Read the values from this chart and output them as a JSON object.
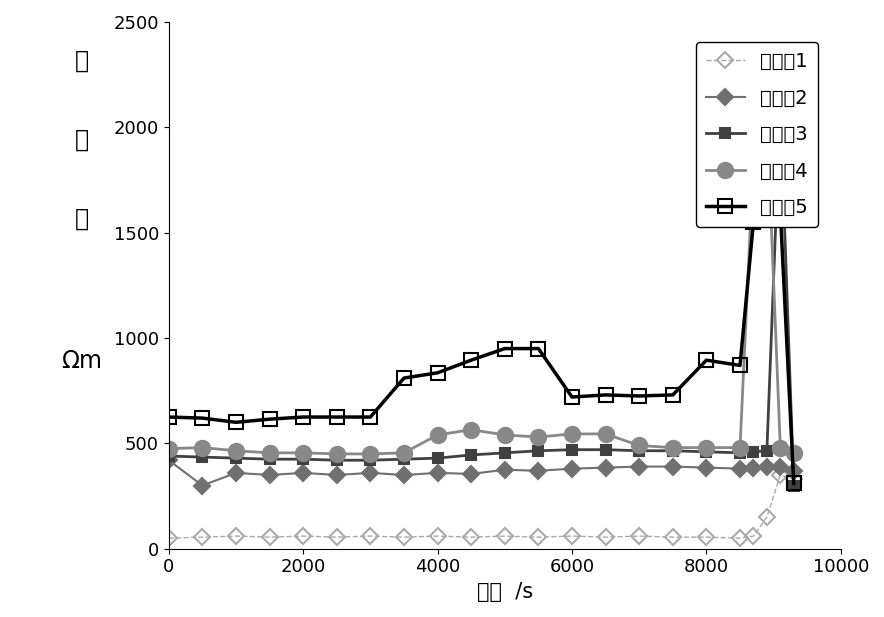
{
  "series": [
    {
      "name": "关键点1",
      "x": [
        0,
        500,
        1000,
        1500,
        2000,
        2500,
        3000,
        3500,
        4000,
        4500,
        5000,
        5500,
        6000,
        6500,
        7000,
        7500,
        8000,
        8500,
        8700,
        8900,
        9100,
        9300
      ],
      "y": [
        50,
        55,
        60,
        55,
        60,
        55,
        60,
        55,
        60,
        55,
        60,
        55,
        60,
        55,
        60,
        55,
        55,
        50,
        60,
        150,
        350,
        330
      ],
      "marker": "D",
      "markersize": 8,
      "color": "#aaaaaa",
      "linewidth": 1.0,
      "fillstyle": "none",
      "linestyle": "--"
    },
    {
      "name": "关键点2",
      "x": [
        0,
        500,
        1000,
        1500,
        2000,
        2500,
        3000,
        3500,
        4000,
        4500,
        5000,
        5500,
        6000,
        6500,
        7000,
        7500,
        8000,
        8500,
        8700,
        8900,
        9100,
        9300
      ],
      "y": [
        420,
        300,
        360,
        350,
        360,
        350,
        360,
        350,
        360,
        355,
        375,
        370,
        380,
        385,
        390,
        390,
        385,
        380,
        385,
        390,
        390,
        370
      ],
      "marker": "D",
      "markersize": 8,
      "color": "#707070",
      "linewidth": 1.5,
      "fillstyle": "full",
      "linestyle": "-"
    },
    {
      "name": "关键点3",
      "x": [
        0,
        500,
        1000,
        1500,
        2000,
        2500,
        3000,
        3500,
        4000,
        4500,
        5000,
        5500,
        6000,
        6500,
        7000,
        7500,
        8000,
        8500,
        8700,
        8900,
        9100,
        9300
      ],
      "y": [
        440,
        435,
        430,
        425,
        425,
        420,
        420,
        425,
        430,
        445,
        455,
        465,
        470,
        470,
        465,
        465,
        460,
        455,
        460,
        465,
        2100,
        300
      ],
      "marker": "s",
      "markersize": 7,
      "color": "#404040",
      "linewidth": 2.0,
      "fillstyle": "full",
      "linestyle": "-"
    },
    {
      "name": "关键点4",
      "x": [
        0,
        500,
        1000,
        1500,
        2000,
        2500,
        3000,
        3500,
        4000,
        4500,
        5000,
        5500,
        6000,
        6500,
        7000,
        7500,
        8000,
        8500,
        8700,
        8900,
        9100,
        9300
      ],
      "y": [
        475,
        480,
        465,
        455,
        455,
        450,
        450,
        455,
        540,
        565,
        540,
        530,
        545,
        545,
        490,
        480,
        480,
        480,
        1850,
        2050,
        480,
        455
      ],
      "marker": "o",
      "markersize": 11,
      "color": "#888888",
      "linewidth": 2.0,
      "fillstyle": "full",
      "linestyle": "-"
    },
    {
      "name": "关键点5",
      "x": [
        0,
        500,
        1000,
        1500,
        2000,
        2500,
        3000,
        3500,
        4000,
        4500,
        5000,
        5500,
        6000,
        6500,
        7000,
        7500,
        8000,
        8500,
        8700,
        8900,
        9100,
        9300
      ],
      "y": [
        625,
        620,
        600,
        615,
        625,
        625,
        625,
        810,
        835,
        895,
        950,
        950,
        720,
        730,
        725,
        730,
        895,
        870,
        1550,
        1620,
        1600,
        310
      ],
      "marker": "s",
      "markersize": 10,
      "color": "#000000",
      "linewidth": 2.5,
      "fillstyle": "none",
      "linestyle": "-"
    }
  ],
  "legend_names": [
    "关键点1",
    "关键点2",
    "关键点3",
    "关键点4",
    "关键点5"
  ],
  "xlabel": "时间  /s",
  "ylabel_lines": [
    "视",
    "阻",
    "値",
    "",
    "Ωm"
  ],
  "xlim": [
    0,
    10000
  ],
  "ylim": [
    0,
    2500
  ],
  "xticks": [
    0,
    2000,
    4000,
    6000,
    8000,
    10000
  ],
  "yticks": [
    0,
    500,
    1000,
    1500,
    2000,
    2500
  ],
  "font_size": 15,
  "tick_fontsize": 13
}
